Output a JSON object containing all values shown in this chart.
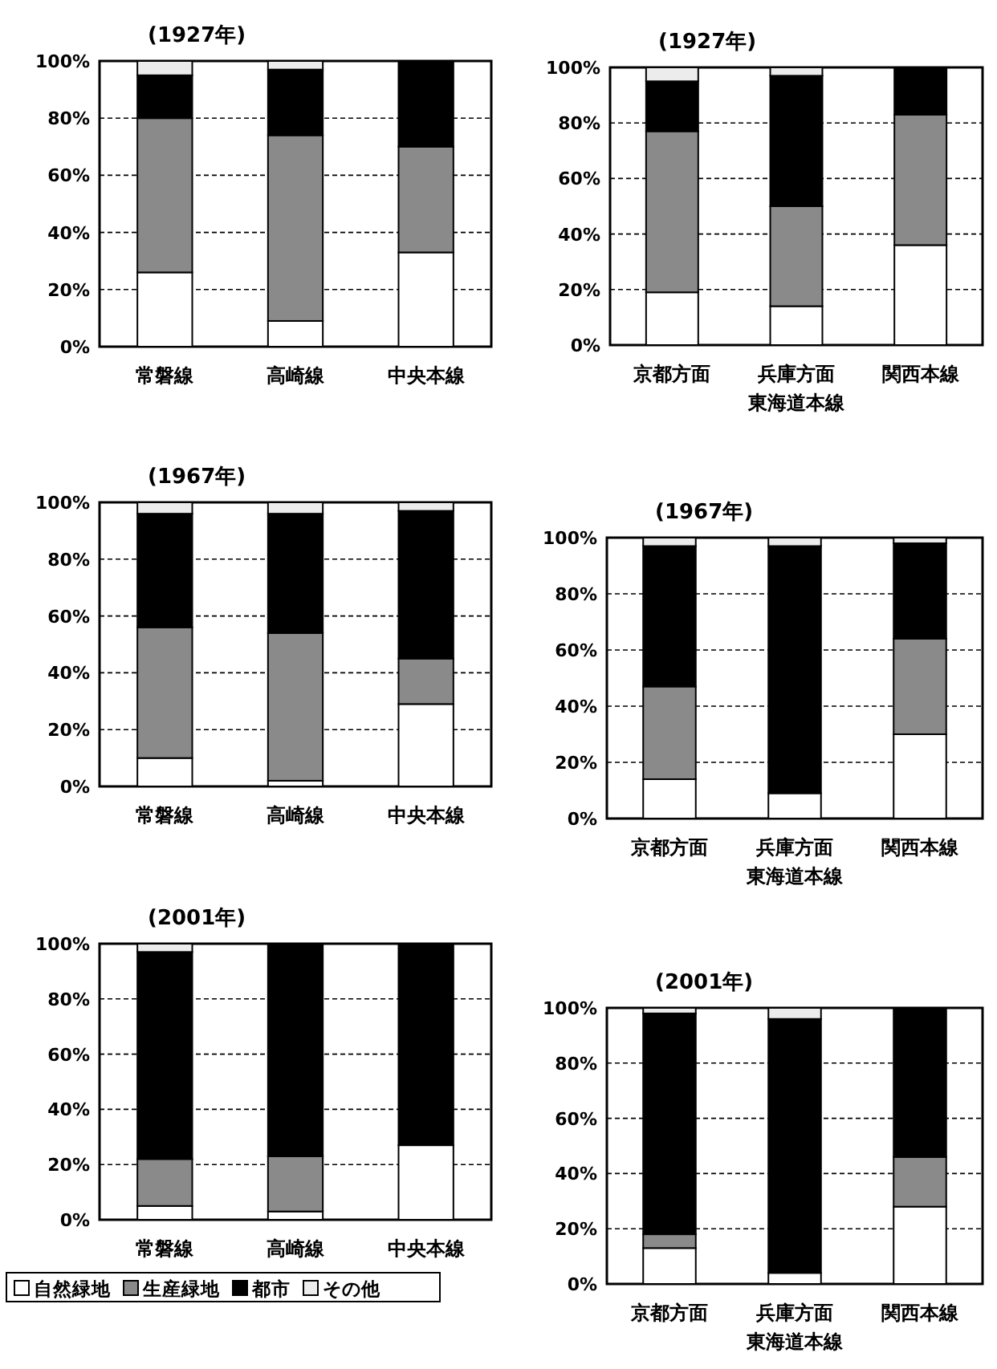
{
  "chart_data": [
    {
      "type": "bar",
      "title": "(1927年)",
      "stacked": true,
      "grid": "y",
      "categories": [
        "常磐線",
        "高崎線",
        "中央本線"
      ],
      "ylim": [
        0,
        100
      ],
      "yticks": [
        {
          "value": 0,
          "label": "0%"
        },
        {
          "value": 20,
          "label": "20%"
        },
        {
          "value": 40,
          "label": "40%"
        },
        {
          "value": 60,
          "label": "60%"
        },
        {
          "value": 80,
          "label": "80%"
        },
        {
          "value": 100,
          "label": "100%"
        }
      ],
      "series": [
        {
          "color": "#ffffff",
          "values": [
            26,
            9,
            33
          ]
        },
        {
          "color": "#8a8a8a",
          "values": [
            54,
            65,
            37
          ]
        },
        {
          "color": "#000000",
          "values": [
            15,
            23,
            30
          ]
        },
        {
          "color": "#ececec",
          "values": [
            5,
            3,
            0
          ]
        }
      ]
    },
    {
      "type": "bar",
      "title": "(1927年)",
      "xlabel": "東海道本線",
      "stacked": true,
      "grid": "y",
      "categories": [
        "京都方面",
        "兵庫方面",
        "関西本線"
      ],
      "ylim": [
        0,
        100
      ],
      "yticks": [
        {
          "value": 0,
          "label": "0%"
        },
        {
          "value": 20,
          "label": "20%"
        },
        {
          "value": 40,
          "label": "40%"
        },
        {
          "value": 60,
          "label": "60%"
        },
        {
          "value": 80,
          "label": "80%"
        },
        {
          "value": 100,
          "label": "100%"
        }
      ],
      "series": [
        {
          "color": "#ffffff",
          "values": [
            19,
            14,
            36
          ]
        },
        {
          "color": "#8a8a8a",
          "values": [
            58,
            36,
            47
          ]
        },
        {
          "color": "#000000",
          "values": [
            18,
            47,
            17
          ]
        },
        {
          "color": "#ececec",
          "values": [
            5,
            3,
            0
          ]
        }
      ]
    },
    {
      "type": "bar",
      "title": "(1967年)",
      "stacked": true,
      "grid": "y",
      "categories": [
        "常磐線",
        "高崎線",
        "中央本線"
      ],
      "ylim": [
        0,
        100
      ],
      "yticks": [
        {
          "value": 0,
          "label": "0%"
        },
        {
          "value": 20,
          "label": "20%"
        },
        {
          "value": 40,
          "label": "40%"
        },
        {
          "value": 60,
          "label": "60%"
        },
        {
          "value": 80,
          "label": "80%"
        },
        {
          "value": 100,
          "label": "100%"
        }
      ],
      "series": [
        {
          "color": "#ffffff",
          "values": [
            10,
            2,
            29
          ]
        },
        {
          "color": "#8a8a8a",
          "values": [
            46,
            52,
            16
          ]
        },
        {
          "color": "#000000",
          "values": [
            40,
            42,
            52
          ]
        },
        {
          "color": "#ececec",
          "values": [
            4,
            4,
            3
          ]
        }
      ]
    },
    {
      "type": "bar",
      "title": "(1967年)",
      "xlabel": "東海道本線",
      "stacked": true,
      "grid": "y",
      "categories": [
        "京都方面",
        "兵庫方面",
        "関西本線"
      ],
      "ylim": [
        0,
        100
      ],
      "yticks": [
        {
          "value": 0,
          "label": "0%"
        },
        {
          "value": 20,
          "label": "20%"
        },
        {
          "value": 40,
          "label": "40%"
        },
        {
          "value": 60,
          "label": "60%"
        },
        {
          "value": 80,
          "label": "80%"
        },
        {
          "value": 100,
          "label": "100%"
        }
      ],
      "series": [
        {
          "color": "#ffffff",
          "values": [
            14,
            9,
            30
          ]
        },
        {
          "color": "#8a8a8a",
          "values": [
            33,
            0,
            34
          ]
        },
        {
          "color": "#000000",
          "values": [
            50,
            88,
            34
          ]
        },
        {
          "color": "#ececec",
          "values": [
            3,
            3,
            2
          ]
        }
      ]
    },
    {
      "type": "bar",
      "title": "(2001年)",
      "stacked": true,
      "grid": "y",
      "legend": "bottom",
      "categories": [
        "常磐線",
        "高崎線",
        "中央本線"
      ],
      "ylim": [
        0,
        100
      ],
      "yticks": [
        {
          "value": 0,
          "label": "0%"
        },
        {
          "value": 20,
          "label": "20%"
        },
        {
          "value": 40,
          "label": "40%"
        },
        {
          "value": 60,
          "label": "60%"
        },
        {
          "value": 80,
          "label": "80%"
        },
        {
          "value": 100,
          "label": "100%"
        }
      ],
      "series": [
        {
          "name": "自然緑地",
          "color": "#ffffff",
          "values": [
            5,
            3,
            27
          ]
        },
        {
          "name": "生産緑地",
          "color": "#8a8a8a",
          "values": [
            17,
            20,
            0
          ]
        },
        {
          "name": "都市",
          "color": "#000000",
          "values": [
            75,
            77,
            73
          ]
        },
        {
          "name": "その他",
          "color": "#ececec",
          "values": [
            3,
            0,
            0
          ]
        }
      ]
    },
    {
      "type": "bar",
      "title": "(2001年)",
      "xlabel": "東海道本線",
      "stacked": true,
      "grid": "y",
      "categories": [
        "京都方面",
        "兵庫方面",
        "関西本線"
      ],
      "ylim": [
        0,
        100
      ],
      "yticks": [
        {
          "value": 0,
          "label": "0%"
        },
        {
          "value": 20,
          "label": "20%"
        },
        {
          "value": 40,
          "label": "40%"
        },
        {
          "value": 60,
          "label": "60%"
        },
        {
          "value": 80,
          "label": "80%"
        },
        {
          "value": 100,
          "label": "100%"
        }
      ],
      "series": [
        {
          "color": "#ffffff",
          "values": [
            13,
            4,
            28
          ]
        },
        {
          "color": "#8a8a8a",
          "values": [
            5,
            0,
            18
          ]
        },
        {
          "color": "#000000",
          "values": [
            80,
            92,
            54
          ]
        },
        {
          "color": "#ececec",
          "values": [
            2,
            4,
            0
          ]
        }
      ]
    }
  ]
}
